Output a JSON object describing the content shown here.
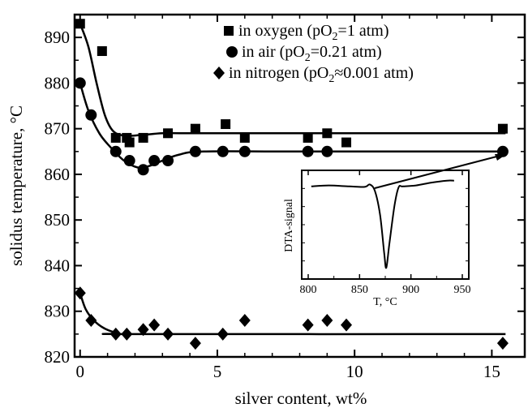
{
  "chart_data": {
    "type": "scatter",
    "xlabel": "silver content, wt%",
    "ylabel": "solidus temperature, °C",
    "xlim": [
      -0.2,
      16.2
    ],
    "ylim": [
      820,
      895
    ],
    "xticks": [
      0,
      5,
      10,
      15
    ],
    "yticks": [
      820,
      830,
      840,
      850,
      860,
      870,
      880,
      890
    ],
    "grid": false,
    "legend_position": "top-right",
    "series": [
      {
        "name": "in oxygen (pO",
        "name_sub": "2",
        "name_suffix": "=1 atm)",
        "marker": "square",
        "points": [
          [
            0,
            893
          ],
          [
            0.8,
            887
          ],
          [
            1.3,
            868
          ],
          [
            1.7,
            868
          ],
          [
            1.8,
            867
          ],
          [
            2.3,
            868
          ],
          [
            3.2,
            869
          ],
          [
            4.2,
            870
          ],
          [
            5.3,
            871
          ],
          [
            6.0,
            868
          ],
          [
            8.3,
            868
          ],
          [
            9.0,
            869
          ],
          [
            9.7,
            867
          ],
          [
            15.4,
            870
          ]
        ],
        "fit_curve": [
          [
            0,
            893
          ],
          [
            0.3,
            888
          ],
          [
            0.6,
            880
          ],
          [
            0.9,
            873
          ],
          [
            1.2,
            869.5
          ],
          [
            1.6,
            868.5
          ],
          [
            2.2,
            868.6
          ],
          [
            3.0,
            869
          ],
          [
            4.0,
            869
          ],
          [
            8.0,
            869
          ],
          [
            15.5,
            869
          ]
        ]
      },
      {
        "name": "in air (pO",
        "name_sub": "2",
        "name_suffix": "=0.21 atm)",
        "marker": "circle",
        "points": [
          [
            0,
            880
          ],
          [
            0.4,
            873
          ],
          [
            1.3,
            865
          ],
          [
            1.8,
            863
          ],
          [
            2.3,
            861
          ],
          [
            2.7,
            863
          ],
          [
            3.2,
            863
          ],
          [
            4.2,
            865
          ],
          [
            5.2,
            865
          ],
          [
            6.0,
            865
          ],
          [
            8.3,
            865
          ],
          [
            9.0,
            865
          ],
          [
            15.4,
            865
          ]
        ],
        "fit_curve": [
          [
            0,
            880
          ],
          [
            0.3,
            874
          ],
          [
            0.7,
            869
          ],
          [
            1.1,
            866
          ],
          [
            1.6,
            863
          ],
          [
            2.1,
            861.5
          ],
          [
            2.5,
            861.8
          ],
          [
            3.0,
            863
          ],
          [
            3.6,
            864.3
          ],
          [
            4.5,
            865
          ],
          [
            8.0,
            865
          ],
          [
            15.5,
            865
          ]
        ]
      },
      {
        "name": "in nitrogen (pO",
        "name_sub": "2",
        "name_suffix": "≈0.001 atm)",
        "marker": "diamond",
        "points": [
          [
            0,
            834
          ],
          [
            0.4,
            828
          ],
          [
            1.3,
            825
          ],
          [
            1.7,
            825
          ],
          [
            2.3,
            826
          ],
          [
            2.7,
            827
          ],
          [
            3.2,
            825
          ],
          [
            4.2,
            823
          ],
          [
            5.2,
            825
          ],
          [
            6.0,
            828
          ],
          [
            8.3,
            827
          ],
          [
            9.0,
            828
          ],
          [
            9.7,
            827
          ],
          [
            15.4,
            823
          ]
        ],
        "fit_curve": [
          [
            0,
            834
          ],
          [
            0.2,
            830.5
          ],
          [
            0.5,
            828
          ],
          [
            0.9,
            826.2
          ],
          [
            1.4,
            825.2
          ],
          [
            2.0,
            825
          ],
          [
            15.5,
            825
          ]
        ]
      }
    ],
    "inset": {
      "type": "line",
      "xlabel": "T, °C",
      "ylabel": "DTA-signal",
      "xlim": [
        800,
        950
      ],
      "xticks": [
        800,
        850,
        900,
        950
      ],
      "ylim": [
        0,
        1
      ],
      "curve": [
        [
          803,
          0.9
        ],
        [
          820,
          0.91
        ],
        [
          840,
          0.9
        ],
        [
          855,
          0.895
        ],
        [
          860,
          0.92
        ],
        [
          865,
          0.85
        ],
        [
          870,
          0.6
        ],
        [
          874,
          0.2
        ],
        [
          876,
          0.05
        ],
        [
          879,
          0.3
        ],
        [
          884,
          0.7
        ],
        [
          888,
          0.89
        ],
        [
          892,
          0.9
        ],
        [
          905,
          0.91
        ],
        [
          920,
          0.94
        ],
        [
          935,
          0.96
        ],
        [
          942,
          0.96
        ]
      ],
      "annotation_arrow": "from inset onset to the 15.4 wt% air data point"
    }
  }
}
